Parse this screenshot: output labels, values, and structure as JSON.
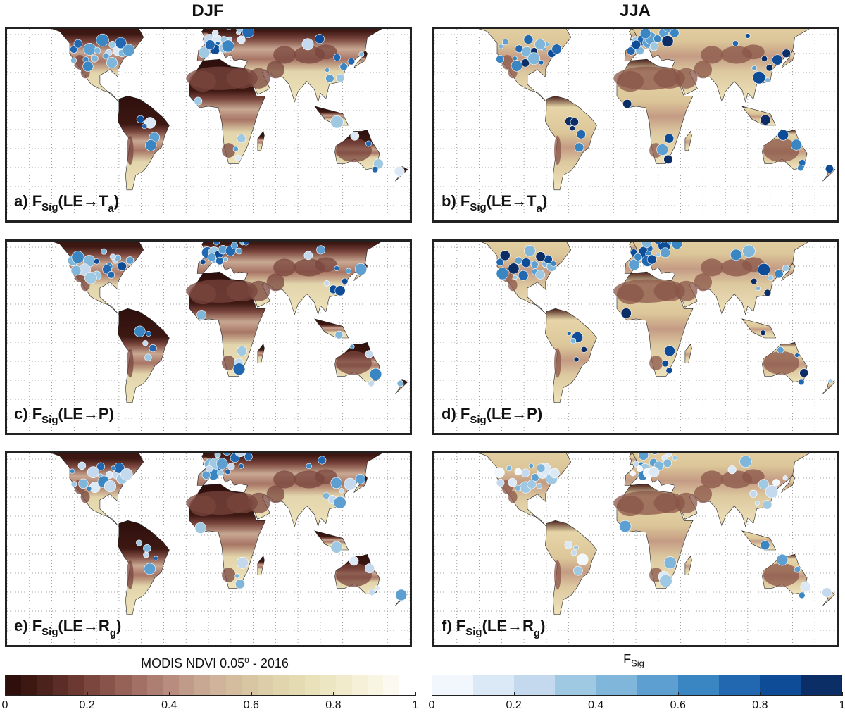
{
  "columns": {
    "left": "DJF",
    "right": "JJA"
  },
  "panels": [
    {
      "id": "a",
      "letter": "a)",
      "target": "T",
      "sub": "a",
      "season": "DJF"
    },
    {
      "id": "b",
      "letter": "b)",
      "target": "T",
      "sub": "a",
      "season": "JJA"
    },
    {
      "id": "c",
      "letter": "c)",
      "target": "P",
      "sub": "",
      "season": "DJF"
    },
    {
      "id": "d",
      "letter": "d)",
      "target": "P",
      "sub": "",
      "season": "JJA"
    },
    {
      "id": "e",
      "letter": "e)",
      "target": "R",
      "sub": "g",
      "season": "DJF"
    },
    {
      "id": "f",
      "letter": "f)",
      "target": "R",
      "sub": "g",
      "season": "JJA"
    }
  ],
  "label_parts": {
    "F": "F",
    "Sig": "Sig",
    "open": "(LE",
    "arrow": "→",
    "close": ")"
  },
  "colorbars": {
    "ndvi": {
      "title": "MODIS NDVI 0.05",
      "title_sup": "o",
      "title_suffix": " - 2016",
      "ticks": [
        "0",
        "0.2",
        "0.4",
        "0.6",
        "0.8",
        "1"
      ],
      "colors": [
        "#2e0f0c",
        "#3d1813",
        "#4c221c",
        "#5b2d26",
        "#6b3931",
        "#7a463d",
        "#88544a",
        "#966258",
        "#a27065",
        "#ad7e72",
        "#b88d7f",
        "#c19b8a",
        "#c9a893",
        "#cfb39a",
        "#d4bd9f",
        "#d8c6a3",
        "#dccea8",
        "#e0d5ad",
        "#e4dbb3",
        "#e8e1ba",
        "#ede6c2",
        "#f1ebcc",
        "#f5f0d7",
        "#f9f5e3",
        "#fcfaf0",
        "#ffffff"
      ]
    },
    "fsig": {
      "title": "F",
      "title_sub": "Sig",
      "ticks": [
        "0",
        "0.2",
        "0.4",
        "0.6",
        "0.8",
        "1"
      ],
      "colors": [
        "#f2f7fd",
        "#dbe8f6",
        "#c4d9ee",
        "#9fc8e2",
        "#7fb6da",
        "#5c9fd0",
        "#3a86c2",
        "#2168b1",
        "#0e4c97",
        "#0b2e66"
      ]
    }
  },
  "map_colors": {
    "ocean": "#ffffff",
    "coast": "#222222",
    "grid": "#888888"
  }
}
